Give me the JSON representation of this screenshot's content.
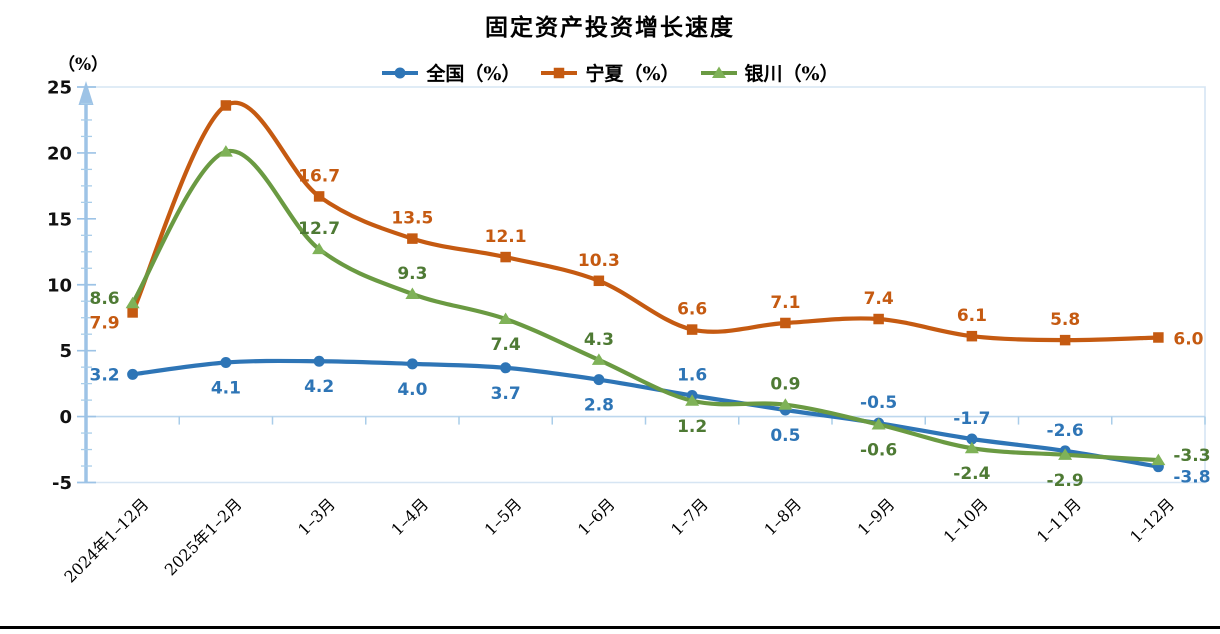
{
  "title": "固定资产投资增长速度",
  "chart_data": {
    "type": "line",
    "title": "固定资产投资增长速度",
    "axis_label": "（%）",
    "categories": [
      "2024年1–12月",
      "2025年1–2月",
      "1–3月",
      "1–4月",
      "1–5月",
      "1–6月",
      "1–7月",
      "1–8月",
      "1–9月",
      "1–10月",
      "1–11月",
      "1–12月"
    ],
    "ylim": [
      -5,
      25
    ],
    "y_ticks": [
      -5,
      0,
      5,
      10,
      15,
      20,
      25
    ],
    "minor_tick_step": 1.25,
    "grid": false,
    "legend_position": "top-center",
    "x_label_rotation": -45,
    "series": [
      {
        "name": "全国（%）",
        "marker": "circle",
        "color": "#2E75B6",
        "label_color": "#2E75B6",
        "values": [
          3.2,
          4.1,
          4.2,
          4.0,
          3.7,
          2.8,
          1.6,
          0.5,
          -0.5,
          -1.7,
          -2.6,
          -3.8
        ],
        "labels": [
          "3.2",
          "4.1",
          "4.2",
          "4.0",
          "3.7",
          "2.8",
          "1.6",
          "0.5",
          "-0.5",
          "-1.7",
          "-2.6",
          "-3.8"
        ],
        "label_positions": [
          "left",
          "below",
          "below",
          "below",
          "below",
          "below",
          "above",
          "below",
          "above",
          "above",
          "above",
          "right-down"
        ]
      },
      {
        "name": "宁夏（%）",
        "marker": "square",
        "color": "#C55A11",
        "label_color": "#C55A11",
        "values": [
          7.9,
          23.6,
          16.7,
          13.5,
          12.1,
          10.3,
          6.6,
          7.1,
          7.4,
          6.1,
          5.8,
          6.0
        ],
        "labels": [
          "7.9",
          null,
          "16.7",
          "13.5",
          "12.1",
          "10.3",
          "6.6",
          "7.1",
          "7.4",
          "6.1",
          "5.8",
          "6.0"
        ],
        "label_positions": [
          "left-down",
          null,
          "above",
          "above",
          "above",
          "above",
          "above",
          "above",
          "above",
          "above",
          "above",
          "right"
        ]
      },
      {
        "name": "银川（%）",
        "marker": "triangle",
        "color": "#6A9A42",
        "marker_color": "#7FB258",
        "label_color": "#4E7A34",
        "values": [
          8.6,
          20.1,
          12.7,
          9.3,
          7.4,
          4.3,
          1.2,
          0.9,
          -0.6,
          -2.4,
          -2.9,
          -3.3
        ],
        "labels": [
          "8.6",
          null,
          "12.7",
          "9.3",
          "7.4",
          "4.3",
          "1.2",
          "0.9",
          "-0.6",
          "-2.4",
          "-2.9",
          "-3.3"
        ],
        "label_positions": [
          "left-up",
          null,
          "above",
          "above",
          "below",
          "above",
          "below",
          "above",
          "below",
          "below",
          "below",
          "right-up"
        ]
      }
    ],
    "colors": {
      "axis": "#9DC3E6",
      "border": "#D6E5F3",
      "zero_line": "#BDD7EE",
      "zero_ticks": "#A9CDE9",
      "bottom_rule": "#000000"
    }
  }
}
